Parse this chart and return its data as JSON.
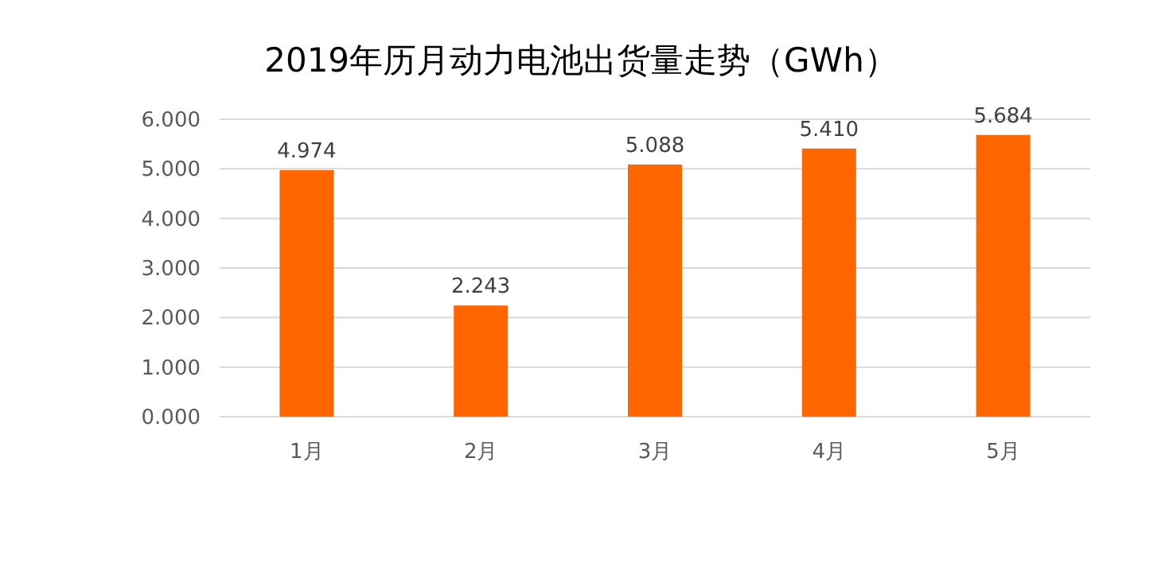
{
  "chart_data": {
    "type": "bar",
    "title": "2019年历月动力电池出货量走势（GWh）",
    "categories": [
      "1月",
      "2月",
      "3月",
      "4月",
      "5月"
    ],
    "values": [
      4.974,
      2.243,
      5.088,
      5.41,
      5.684
    ],
    "value_labels": [
      "4.974",
      "2.243",
      "5.088",
      "5.410",
      "5.684"
    ],
    "color": "#ff6600",
    "ylim": [
      0,
      6
    ],
    "yticks": [
      {
        "value": 0,
        "label": "0.000"
      },
      {
        "value": 1,
        "label": "1.000"
      },
      {
        "value": 2,
        "label": "2.000"
      },
      {
        "value": 3,
        "label": "3.000"
      },
      {
        "value": 4,
        "label": "4.000"
      },
      {
        "value": 5,
        "label": "5.000"
      },
      {
        "value": 6,
        "label": "6.000"
      }
    ],
    "grid": "y"
  }
}
